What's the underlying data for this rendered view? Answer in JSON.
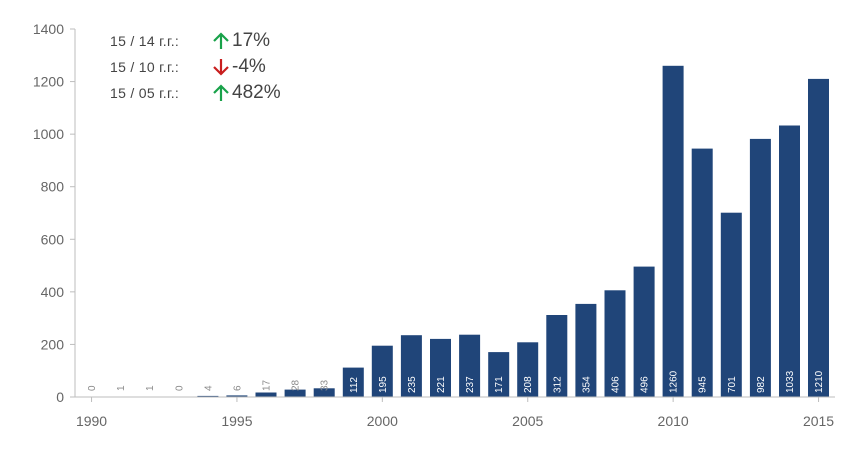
{
  "colors": {
    "bar": "#204579",
    "axis": "#bdbdbd",
    "tick_text": "#666666",
    "label_inside": "#ffffff",
    "label_outside": "#8a8a8a",
    "up": "#19a24a",
    "down": "#c81e1e"
  },
  "stats": [
    {
      "label": "15 / 14 г.г.:",
      "direction": "up",
      "icon": "arrow-up-icon",
      "value": "17%"
    },
    {
      "label": "15 / 10 г.г.:",
      "direction": "down",
      "icon": "arrow-down-icon",
      "value": "-4%"
    },
    {
      "label": "15 / 05 г.г.:",
      "direction": "up",
      "icon": "arrow-up-icon",
      "value": "482%"
    }
  ],
  "chart_data": {
    "type": "bar",
    "title": "",
    "xlabel": "",
    "ylabel": "",
    "categories": [
      1990,
      1991,
      1992,
      1993,
      1994,
      1995,
      1996,
      1997,
      1998,
      1999,
      2000,
      2001,
      2002,
      2003,
      2004,
      2005,
      2006,
      2007,
      2008,
      2009,
      2010,
      2011,
      2012,
      2013,
      2014,
      2015
    ],
    "values": [
      0,
      1,
      1,
      0,
      4,
      6,
      17,
      28,
      33,
      112,
      195,
      235,
      221,
      237,
      171,
      208,
      312,
      354,
      406,
      496,
      1260,
      945,
      701,
      982,
      1033,
      1210
    ],
    "ylim": [
      0,
      1400
    ],
    "yticks": [
      0,
      200,
      400,
      600,
      800,
      1000,
      1200,
      1400
    ],
    "xticks": [
      1990,
      1995,
      2000,
      2005,
      2010,
      2015
    ],
    "grid": false,
    "legend": "none"
  }
}
